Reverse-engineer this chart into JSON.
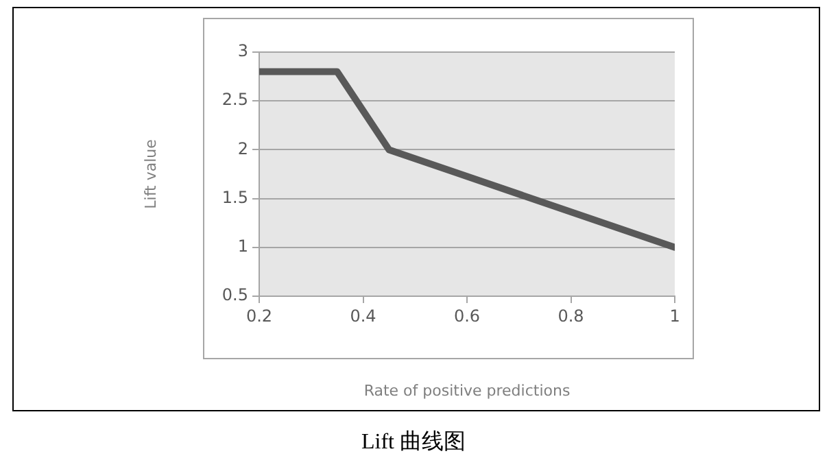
{
  "chart_data": {
    "type": "line",
    "xlabel": "Rate of positive predictions",
    "ylabel": "Lift value",
    "x": [
      0.2,
      0.35,
      0.45,
      1
    ],
    "series": [
      {
        "color": "#595959",
        "values": [
          2.8,
          2.8,
          2.0,
          1.0
        ]
      }
    ],
    "xlim": [
      0.2,
      1
    ],
    "xticks": [
      0.2,
      0.4,
      0.6,
      0.8,
      1
    ],
    "ylim": [
      0.5,
      3
    ],
    "yticks": [
      0.5,
      1,
      1.5,
      2,
      2.5,
      3
    ],
    "grid": "y",
    "marker": "none",
    "line_style": "solid",
    "annotations": [
      "Lift 曲线图"
    ]
  }
}
